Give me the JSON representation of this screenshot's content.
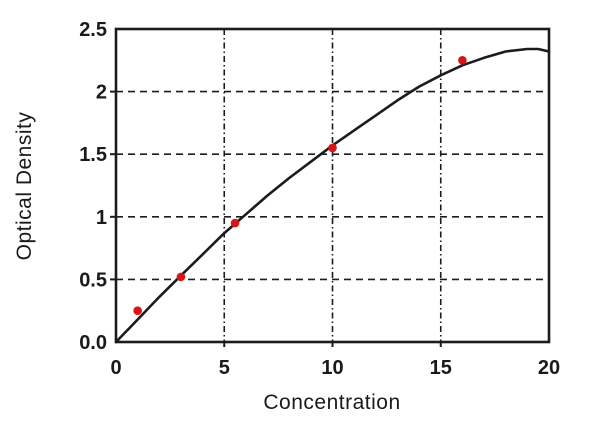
{
  "figure": {
    "background": "#ffffff"
  },
  "chart_data": {
    "type": "scatter",
    "title": "",
    "xlabel": "Concentration",
    "ylabel": "Optical Density",
    "xlim": [
      0,
      20
    ],
    "ylim": [
      0,
      2.5
    ],
    "grid": true,
    "legend": "none",
    "frame_color": "#1c1c1c",
    "gridline_color": "#1c1c1c",
    "x_ticks": [
      {
        "value": 0,
        "label": "0"
      },
      {
        "value": 5,
        "label": "5"
      },
      {
        "value": 10,
        "label": "10"
      },
      {
        "value": 15,
        "label": "15"
      },
      {
        "value": 20,
        "label": "20"
      }
    ],
    "y_ticks": [
      {
        "value": 0,
        "label": "0.0"
      },
      {
        "value": 0.5,
        "label": "0.5"
      },
      {
        "value": 1,
        "label": "1"
      },
      {
        "value": 1.5,
        "label": "1.5"
      },
      {
        "value": 2,
        "label": "2"
      },
      {
        "value": 2.5,
        "label": "2.5"
      }
    ],
    "series": [
      {
        "name": "measured-points",
        "kind": "scatter",
        "color": "#d81414",
        "marker": "circle",
        "points": [
          [
            1,
            0.25
          ],
          [
            3,
            0.52
          ],
          [
            5.5,
            0.95
          ],
          [
            10,
            1.55
          ],
          [
            16,
            2.25
          ]
        ]
      },
      {
        "name": "fitted-curve",
        "kind": "line",
        "color": "#1c1c1c",
        "points": [
          [
            0,
            0.0
          ],
          [
            1,
            0.18
          ],
          [
            2,
            0.36
          ],
          [
            3,
            0.53
          ],
          [
            4,
            0.7
          ],
          [
            5,
            0.87
          ],
          [
            6,
            1.02
          ],
          [
            7,
            1.17
          ],
          [
            8,
            1.31
          ],
          [
            9,
            1.44
          ],
          [
            10,
            1.57
          ],
          [
            11,
            1.69
          ],
          [
            12,
            1.81
          ],
          [
            13,
            1.93
          ],
          [
            14,
            2.04
          ],
          [
            15,
            2.13
          ],
          [
            16,
            2.21
          ],
          [
            17,
            2.27
          ],
          [
            18,
            2.32
          ],
          [
            19,
            2.34
          ],
          [
            19.5,
            2.34
          ],
          [
            20,
            2.32
          ]
        ]
      }
    ]
  }
}
